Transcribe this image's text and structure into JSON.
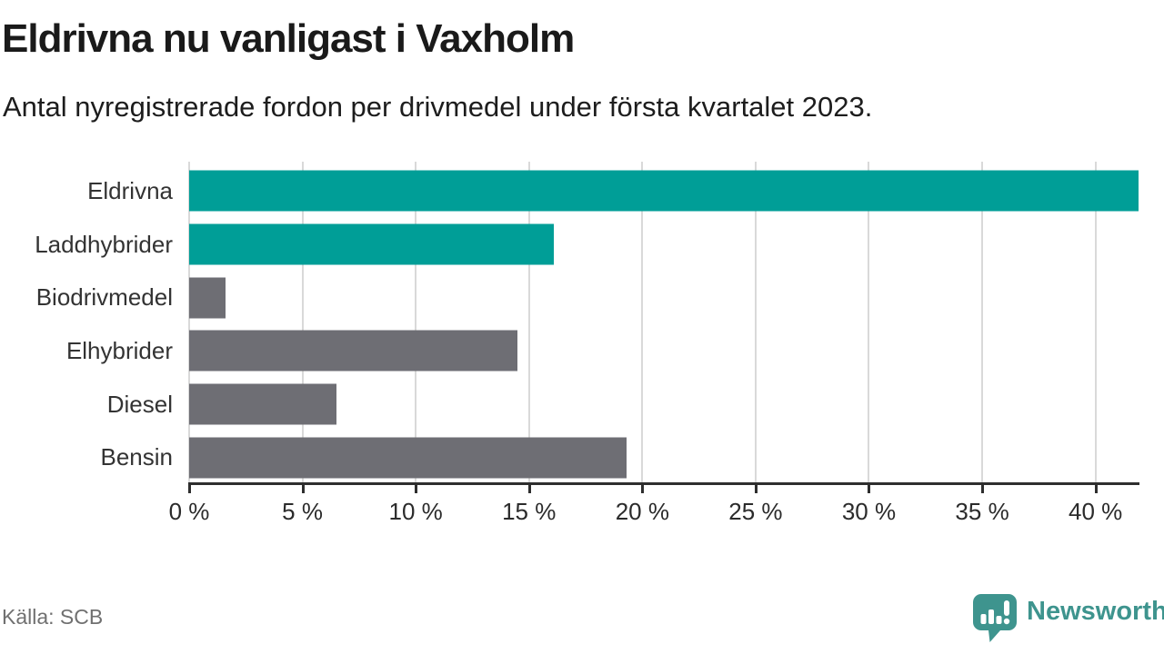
{
  "header": {
    "title": "Eldrivna nu vanligast i Vaxholm",
    "subtitle": "Antal nyregistrerade fordon per drivmedel under första kvartalet 2023."
  },
  "chart_data": {
    "type": "bar",
    "orientation": "horizontal",
    "title": "Eldrivna nu vanligast i Vaxholm",
    "subtitle": "Antal nyregistrerade fordon per drivmedel under första kvartalet 2023.",
    "categories": [
      "Eldrivna",
      "Laddhybrider",
      "Biodrivmedel",
      "Elhybrider",
      "Diesel",
      "Bensin"
    ],
    "values": [
      41.9,
      16.1,
      1.6,
      14.5,
      6.5,
      19.3
    ],
    "unit": "%",
    "bar_colors": [
      "#009e97",
      "#009e97",
      "#6e6e74",
      "#6e6e74",
      "#6e6e74",
      "#6e6e74"
    ],
    "xlim": [
      0,
      41.9
    ],
    "xticks": [
      0,
      5,
      10,
      15,
      20,
      25,
      30,
      35,
      40
    ],
    "xtick_labels": [
      "0 %",
      "5 %",
      "10 %",
      "15 %",
      "20 %",
      "25 %",
      "30 %",
      "35 %",
      "40 %"
    ],
    "grid": true,
    "legend": false,
    "xlabel": "",
    "ylabel": ""
  },
  "colors": {
    "accent_teal": "#009e97",
    "neutral_gray": "#6e6e74",
    "gridline": "#d9d9d9",
    "axis": "#2e2e2e",
    "brand_teal": "#3e948e"
  },
  "footer": {
    "source": "Källa: SCB",
    "brand": "Newsworthy",
    "logo_icon": "newsworthy-speech-bubble-bar-chart-icon"
  }
}
